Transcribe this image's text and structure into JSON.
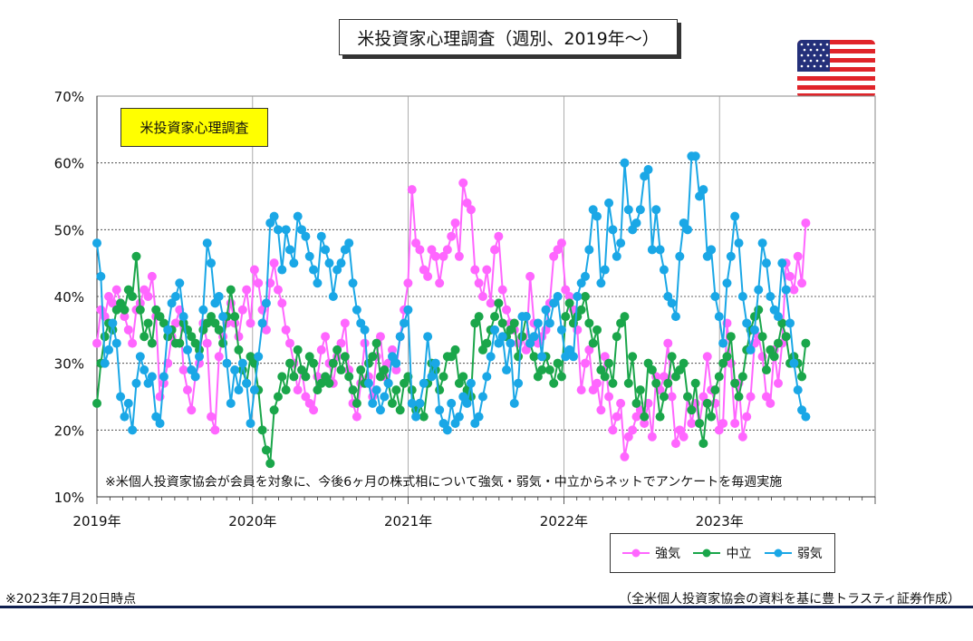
{
  "title": "米投資家心理調査（週別、2019年～）",
  "box_label": "米投資家心理調査",
  "annotation": "※米個人投資家協会が会員を対象に、今後6ヶ月の株式相について強気・弱気・中立からネットでアンケートを毎週実施",
  "footer_left": "※2023年7月20日時点",
  "footer_right": "（全米個人投資家協会の資料を基に豊トラスティ証券作成）",
  "colors": {
    "bullish": "#ff66ff",
    "neutral": "#1aa64a",
    "bearish": "#1aa7e6"
  },
  "chart_data": {
    "type": "line",
    "x_start": "2019-01",
    "x_end": "2023-07-20",
    "x_ticks": [
      "2019年",
      "2020年",
      "2021年",
      "2022年",
      "2023年"
    ],
    "y_ticks": [
      "10%",
      "20%",
      "30%",
      "40%",
      "50%",
      "60%",
      "70%"
    ],
    "ylim": [
      10,
      70
    ],
    "xlim": [
      2019.0,
      2024.0
    ],
    "grid": "y and year gridlines",
    "legend": "bottom-right",
    "series": [
      {
        "name": "強気",
        "values": [
          33,
          38,
          37,
          40,
          39,
          41,
          39,
          37,
          35,
          33,
          38,
          39,
          41,
          40,
          43,
          37,
          25,
          27,
          30,
          34,
          36,
          38,
          29,
          26,
          23,
          28,
          30,
          36,
          33,
          22,
          20,
          31,
          34,
          36,
          39,
          36,
          34,
          38,
          41,
          36,
          44,
          42,
          38,
          35,
          42,
          45,
          41,
          39,
          35,
          33,
          30,
          26,
          29,
          25,
          24,
          23,
          28,
          32,
          34,
          30,
          27,
          31,
          33,
          36,
          29,
          24,
          22,
          27,
          33,
          28,
          25,
          31,
          34,
          28,
          30,
          32,
          29,
          34,
          38,
          42,
          56,
          48,
          47,
          44,
          43,
          47,
          46,
          42,
          46,
          47,
          49,
          51,
          46,
          57,
          54,
          53,
          44,
          42,
          40,
          44,
          39,
          47,
          49,
          41,
          38,
          36,
          35,
          33,
          34,
          32,
          43,
          36,
          33,
          34,
          35,
          39,
          46,
          47,
          48,
          41,
          40,
          38,
          35,
          26,
          30,
          32,
          26,
          27,
          23,
          31,
          25,
          20,
          22,
          24,
          16,
          19,
          20,
          22,
          23,
          21,
          24,
          19,
          28,
          26,
          28,
          33,
          25,
          18,
          20,
          19,
          25,
          21,
          24,
          21,
          25,
          31,
          26,
          24,
          20,
          21,
          36,
          30,
          21,
          27,
          19,
          22,
          25,
          33,
          34,
          31,
          25,
          24,
          32,
          27,
          33,
          45,
          43,
          41,
          46,
          42,
          51
        ]
      },
      {
        "name": "中立",
        "values": [
          24,
          30,
          34,
          36,
          35,
          38,
          39,
          38,
          41,
          40,
          46,
          38,
          34,
          36,
          33,
          38,
          37,
          36,
          34,
          35,
          33,
          33,
          36,
          35,
          34,
          33,
          32,
          35,
          36,
          37,
          36,
          35,
          33,
          37,
          41,
          37,
          32,
          29,
          27,
          31,
          30,
          26,
          20,
          17,
          15,
          23,
          25,
          28,
          26,
          30,
          28,
          32,
          29,
          28,
          31,
          30,
          26,
          27,
          28,
          27,
          30,
          32,
          29,
          31,
          28,
          26,
          24,
          29,
          27,
          30,
          31,
          33,
          28,
          29,
          27,
          24,
          26,
          23,
          27,
          28,
          26,
          23,
          24,
          22,
          27,
          30,
          29,
          26,
          28,
          31,
          31,
          32,
          27,
          28,
          26,
          25,
          36,
          37,
          32,
          33,
          35,
          37,
          39,
          36,
          34,
          35,
          36,
          31,
          34,
          37,
          33,
          31,
          28,
          29,
          31,
          29,
          27,
          30,
          28,
          37,
          39,
          36,
          37,
          38,
          40,
          36,
          33,
          35,
          29,
          28,
          30,
          27,
          34,
          36,
          37,
          27,
          31,
          24,
          26,
          22,
          30,
          29,
          27,
          22,
          25,
          27,
          31,
          28,
          29,
          30,
          25,
          23,
          27,
          21,
          18,
          24,
          22,
          26,
          28,
          30,
          31,
          34,
          27,
          25,
          28,
          32,
          35,
          37,
          38,
          34,
          29,
          32,
          31,
          33,
          36,
          34,
          30,
          31,
          30,
          28,
          33
        ]
      },
      {
        "name": "弱気",
        "values": [
          48,
          43,
          30,
          32,
          36,
          33,
          25,
          22,
          24,
          20,
          27,
          31,
          29,
          27,
          28,
          22,
          21,
          28,
          35,
          39,
          40,
          42,
          37,
          32,
          29,
          28,
          31,
          38,
          48,
          45,
          39,
          40,
          37,
          30,
          24,
          29,
          26,
          30,
          27,
          21,
          26,
          31,
          36,
          39,
          51,
          52,
          50,
          44,
          50,
          47,
          45,
          52,
          50,
          49,
          46,
          44,
          42,
          49,
          47,
          45,
          40,
          44,
          45,
          47,
          48,
          42,
          38,
          36,
          35,
          27,
          24,
          26,
          23,
          25,
          27,
          31,
          30,
          34,
          36,
          38,
          24,
          22,
          24,
          27,
          34,
          28,
          30,
          23,
          21,
          20,
          24,
          21,
          22,
          25,
          24,
          27,
          21,
          22,
          25,
          28,
          31,
          35,
          33,
          34,
          29,
          33,
          24,
          27,
          37,
          37,
          33,
          34,
          36,
          31,
          38,
          36,
          39,
          40,
          35,
          31,
          32,
          31,
          40,
          42,
          43,
          47,
          53,
          52,
          42,
          44,
          54,
          50,
          46,
          48,
          60,
          53,
          50,
          51,
          53,
          58,
          59,
          47,
          53,
          47,
          44,
          40,
          39,
          37,
          46,
          51,
          50,
          61,
          61,
          55,
          56,
          46,
          47,
          40,
          37,
          33,
          42,
          46,
          52,
          48,
          40,
          36,
          32,
          35,
          41,
          48,
          45,
          40,
          38,
          37,
          45,
          41,
          36,
          30,
          26,
          23,
          22
        ]
      }
    ]
  }
}
